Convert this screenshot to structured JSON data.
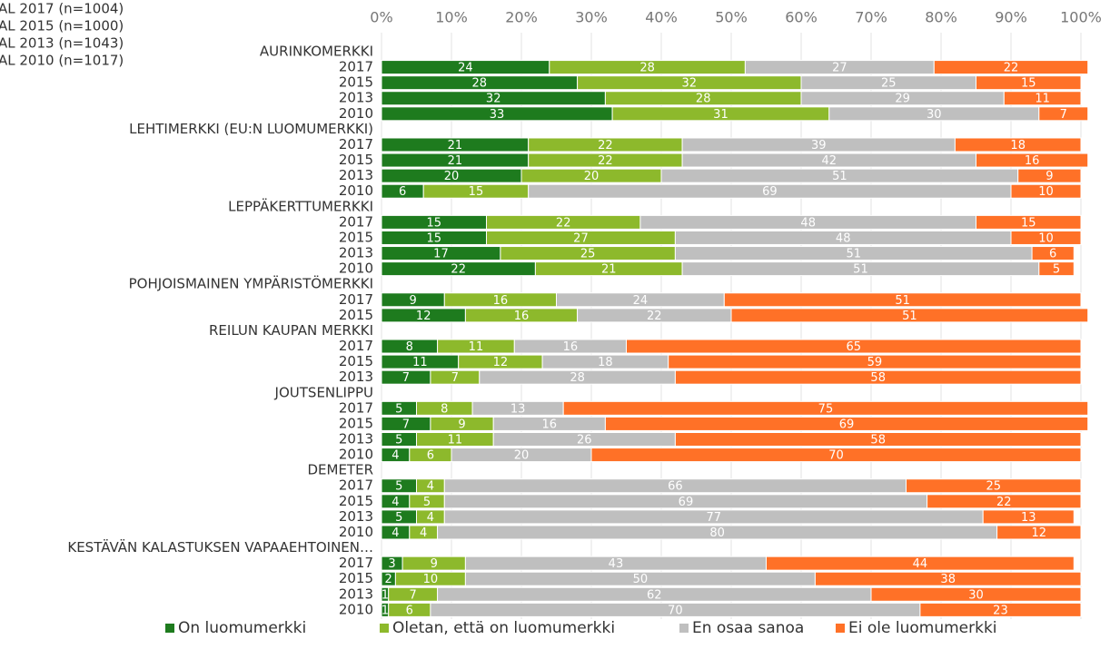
{
  "chart_data": {
    "type": "stacked_bar_horizontal",
    "notes": [
      "AL 2017 (n=1004)",
      "AL 2015 (n=1000)",
      "AL 2013 (n=1043)",
      "AL 2010 (n=1017)"
    ],
    "categories": [
      "AURINKOMERKKI",
      "2017",
      "2015",
      "2013",
      "2010",
      "LEHTIMERKKI (EU:N LUOMUMERKKI)",
      "2017",
      "2015",
      "2013",
      "2010",
      "LEPPÄKERTTUMERKKI",
      "2017",
      "2015",
      "2013",
      "2010",
      "POHJOISMAINEN YMPÄRISTÖMERKKI",
      "2017",
      "2015",
      "REILUN KAUPAN MERKKI",
      "2017",
      "2015",
      "2013",
      "JOUTSENLIPPU",
      "2017",
      "2015",
      "2013",
      "2010",
      "DEMETER",
      "2017",
      "2015",
      "2013",
      "2010",
      "KESTÄVÄN KALASTUKSEN VAPAAEHTOINEN…",
      "2017",
      "2015",
      "2013",
      "2010"
    ],
    "series": [
      {
        "name": "On luomumerkki",
        "color": "#1e7b1e",
        "values": [
          null,
          24,
          28,
          32,
          33,
          null,
          21,
          21,
          20,
          6,
          null,
          15,
          15,
          17,
          22,
          null,
          9,
          12,
          null,
          8,
          11,
          7,
          null,
          5,
          7,
          5,
          4,
          null,
          5,
          4,
          5,
          4,
          null,
          3,
          2,
          1,
          1
        ]
      },
      {
        "name": "Oletan, että on luomumerkki",
        "color": "#8db92c",
        "values": [
          null,
          28,
          32,
          28,
          31,
          null,
          22,
          22,
          20,
          15,
          null,
          22,
          27,
          25,
          21,
          null,
          16,
          16,
          null,
          11,
          12,
          7,
          null,
          8,
          9,
          11,
          6,
          null,
          4,
          5,
          4,
          4,
          null,
          9,
          10,
          7,
          6
        ]
      },
      {
        "name": "En osaa sanoa",
        "color": "#bfbfbf",
        "values": [
          null,
          27,
          25,
          29,
          30,
          null,
          39,
          42,
          51,
          69,
          null,
          48,
          48,
          51,
          51,
          null,
          24,
          22,
          null,
          16,
          18,
          28,
          null,
          13,
          16,
          26,
          20,
          null,
          66,
          69,
          77,
          80,
          null,
          43,
          50,
          62,
          70
        ]
      },
      {
        "name": "Ei ole luomumerkki",
        "color": "#ff7127",
        "values": [
          null,
          22,
          15,
          11,
          7,
          null,
          18,
          16,
          9,
          10,
          null,
          15,
          10,
          6,
          5,
          null,
          51,
          51,
          null,
          65,
          59,
          58,
          null,
          75,
          69,
          58,
          70,
          null,
          25,
          22,
          13,
          12,
          null,
          44,
          38,
          30,
          23
        ]
      }
    ],
    "xlim": [
      0,
      100
    ],
    "xticks": [
      {
        "value": 0,
        "label": "0%"
      },
      {
        "value": 10,
        "label": "10%"
      },
      {
        "value": 20,
        "label": "20%"
      },
      {
        "value": 30,
        "label": "30%"
      },
      {
        "value": 40,
        "label": "40%"
      },
      {
        "value": 50,
        "label": "50%"
      },
      {
        "value": 60,
        "label": "60%"
      },
      {
        "value": 70,
        "label": "70%"
      },
      {
        "value": 80,
        "label": "80%"
      },
      {
        "value": 90,
        "label": "90%"
      },
      {
        "value": 100,
        "label": "100%"
      }
    ],
    "grid": true,
    "legend": "bottom"
  }
}
